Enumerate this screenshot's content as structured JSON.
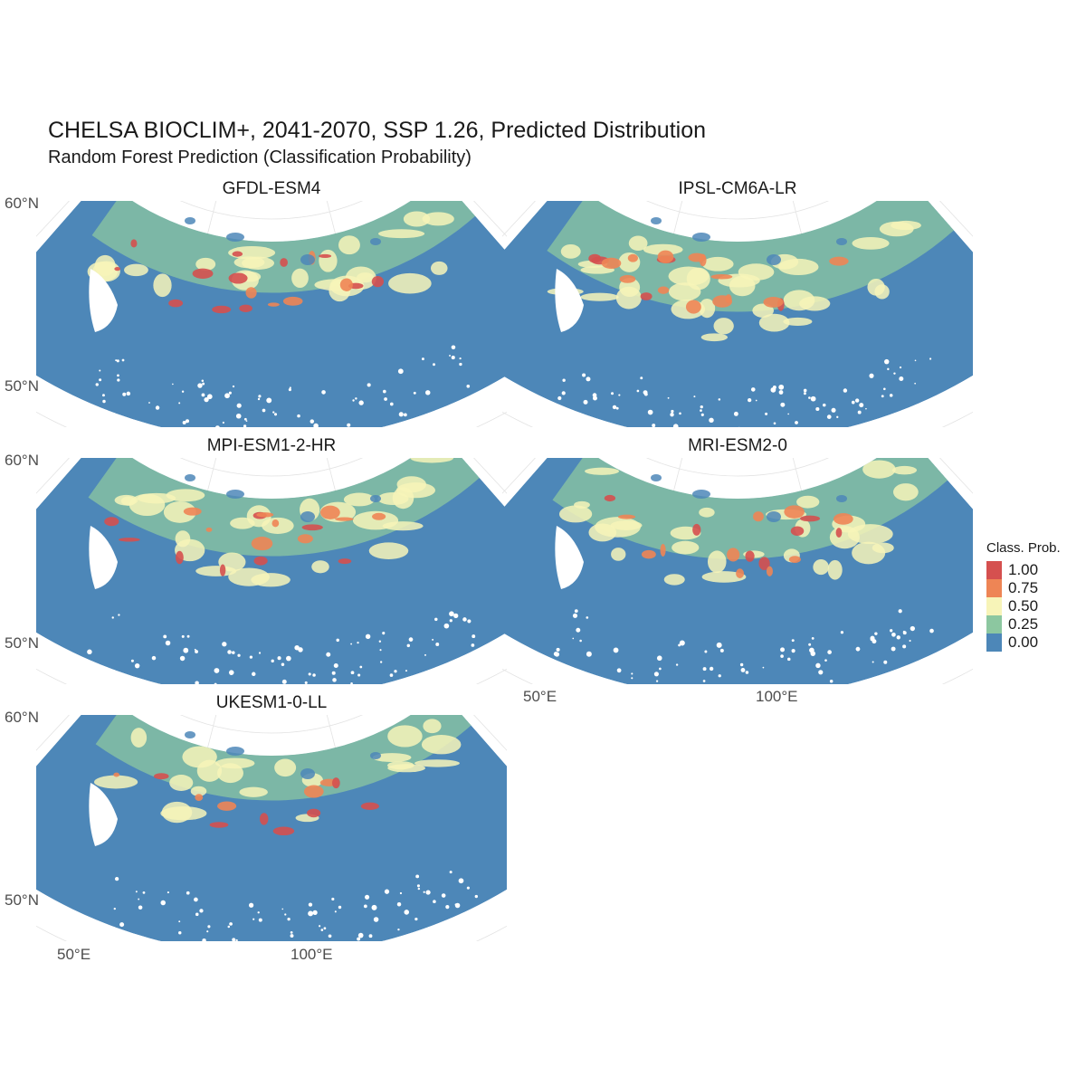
{
  "title": "CHELSA BIOCLIM+, 2041-2070, SSP 1.26, Predicted Distribution",
  "subtitle": "Random Forest Prediction (Classification Probability)",
  "axis_labels": {
    "lat_top": "60°N",
    "lat_bottom": "50°N",
    "lon_left": "50°E",
    "lon_right": "100°E"
  },
  "legend": {
    "title": "Class. Prob.",
    "entries": [
      {
        "label": "1.00",
        "color": "#d5504f"
      },
      {
        "label": "0.75",
        "color": "#ee8555"
      },
      {
        "label": "0.50",
        "color": "#f7f4b8"
      },
      {
        "label": "0.25",
        "color": "#8cc7a0"
      },
      {
        "label": "0.00",
        "color": "#4d87b8"
      }
    ]
  },
  "colors": {
    "low": "#4d87b8",
    "low_mid": "#8cc7a0",
    "mid": "#f7f4b8",
    "high_mid": "#ee8555",
    "high": "#d5504f",
    "graticule": "#e3e3e3"
  },
  "chart_data": {
    "type": "heatmap",
    "projection": "polar (conic) map, north up",
    "facets": [
      {
        "model": "GFDL-ESM4",
        "hotspot_level": 0.9,
        "yellow_extent": 0.45
      },
      {
        "model": "IPSL-CM6A-LR",
        "hotspot_level": 1.0,
        "yellow_extent": 0.75
      },
      {
        "model": "MPI-ESM1-2-HR",
        "hotspot_level": 0.9,
        "yellow_extent": 0.55
      },
      {
        "model": "MRI-ESM2-0",
        "hotspot_level": 0.95,
        "yellow_extent": 0.6
      },
      {
        "model": "UKESM1-0-LL",
        "hotspot_level": 0.55,
        "yellow_extent": 0.35
      }
    ],
    "fill_scale": {
      "min": 0.0,
      "max": 1.0,
      "breaks": [
        0.0,
        0.25,
        0.5,
        0.75,
        1.0
      ]
    },
    "grid": true,
    "legend_position": "right"
  }
}
